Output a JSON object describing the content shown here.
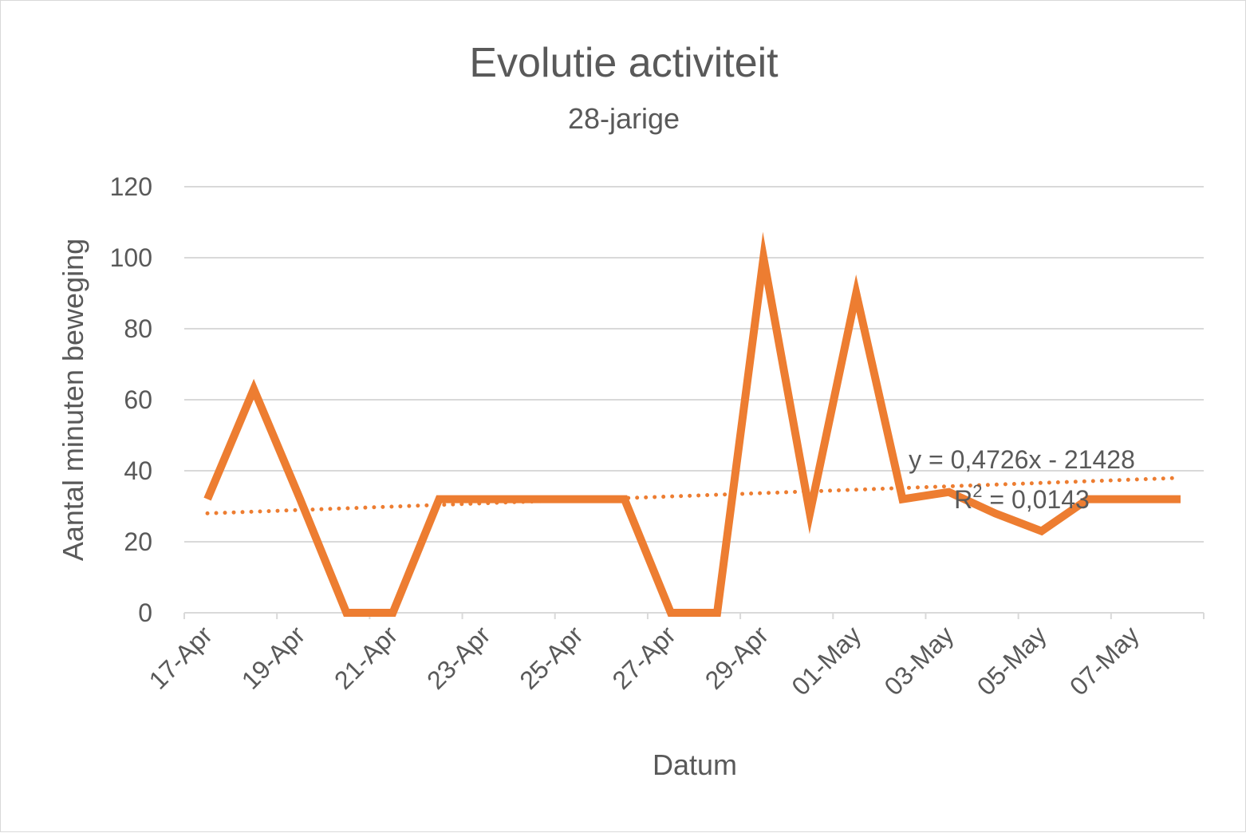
{
  "chart_data": {
    "type": "line",
    "title": "Evolutie activiteit",
    "subtitle": "28-jarige",
    "xlabel": "Datum",
    "ylabel": "Aantal minuten beweging",
    "ylim": [
      0,
      120
    ],
    "yticks": [
      0,
      20,
      40,
      60,
      80,
      100,
      120
    ],
    "xticks": [
      "17-Apr",
      "19-Apr",
      "21-Apr",
      "23-Apr",
      "25-Apr",
      "27-Apr",
      "29-Apr",
      "01-May",
      "03-May",
      "05-May",
      "07-May"
    ],
    "grid": true,
    "legend": "none",
    "series": [
      {
        "x": [
          "17-Apr",
          "18-Apr",
          "19-Apr",
          "20-Apr",
          "21-Apr",
          "22-Apr",
          "23-Apr",
          "24-Apr",
          "25-Apr",
          "26-Apr",
          "27-Apr",
          "28-Apr",
          "29-Apr",
          "30-Apr",
          "01-May",
          "02-May",
          "03-May",
          "04-May",
          "05-May",
          "06-May",
          "07-May",
          "08-May"
        ],
        "values": [
          32,
          63,
          32,
          0,
          0,
          32,
          32,
          32,
          32,
          32,
          0,
          0,
          100,
          28,
          90,
          32,
          34,
          28,
          23,
          32,
          32,
          32
        ],
        "color": "#ed7d31"
      }
    ],
    "trendline": {
      "type": "linear",
      "start": 28,
      "end": 38,
      "color": "#ed7d31",
      "equation": "y = 0,4726x - 21428",
      "r2_prefix": "R",
      "r2_exp": "2",
      "r2_value": " = 0,0143"
    }
  }
}
